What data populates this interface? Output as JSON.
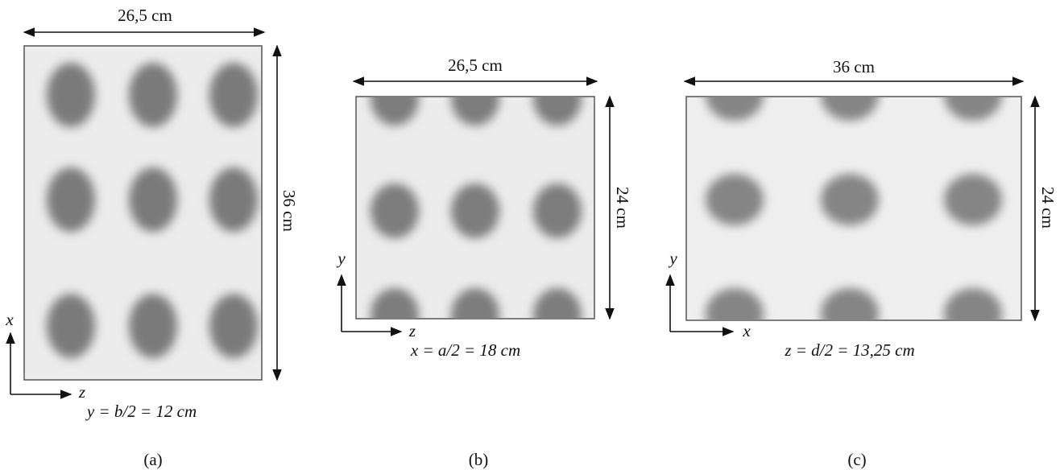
{
  "panels": [
    {
      "label": "(a)",
      "width": "26,5 cm",
      "height": "36 cm",
      "axis_vertical": "x",
      "axis_horizontal": "z",
      "section": "y = b/2 = 12 cm"
    },
    {
      "label": "(b)",
      "width": "26,5 cm",
      "height": "24 cm",
      "axis_vertical": "y",
      "axis_horizontal": "z",
      "section": "x = a/2 = 18 cm"
    },
    {
      "label": "(c)",
      "width": "36 cm",
      "height": "24 cm",
      "axis_vertical": "y",
      "axis_horizontal": "x",
      "section": "z = d/2 = 13,25 cm"
    }
  ]
}
